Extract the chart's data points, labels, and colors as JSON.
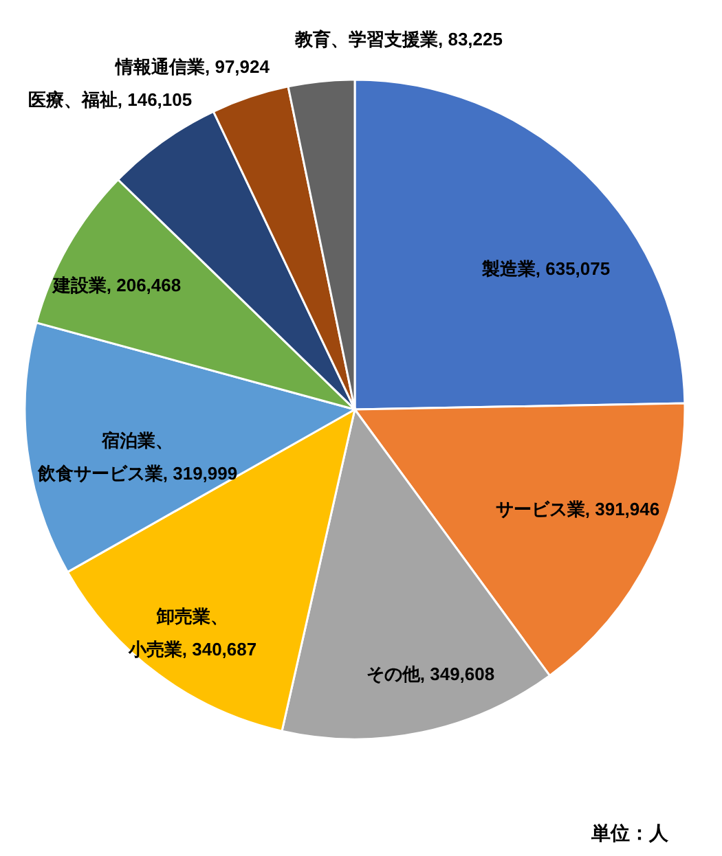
{
  "chart_data": {
    "type": "pie",
    "categories": [
      "製造業",
      "サービス業",
      "その他",
      "卸売業、小売業",
      "宿泊業、飲食サービス業",
      "建設業",
      "医療、福祉",
      "情報通信業",
      "教育、学習支援業"
    ],
    "values": [
      635075,
      391946,
      349608,
      340687,
      319999,
      206468,
      146105,
      97924,
      83225
    ],
    "value_labels": [
      "635,075",
      "391,946",
      "349,608",
      "340,687",
      "319,999",
      "206,468",
      "146,105",
      "97,924",
      "83,225"
    ],
    "colors": [
      "#4472c4",
      "#ed7d31",
      "#a5a5a5",
      "#ffc000",
      "#5b9bd5",
      "#70ad47",
      "#264478",
      "#9e480e",
      "#636363"
    ],
    "annotations": [
      "単位：人"
    ]
  }
}
